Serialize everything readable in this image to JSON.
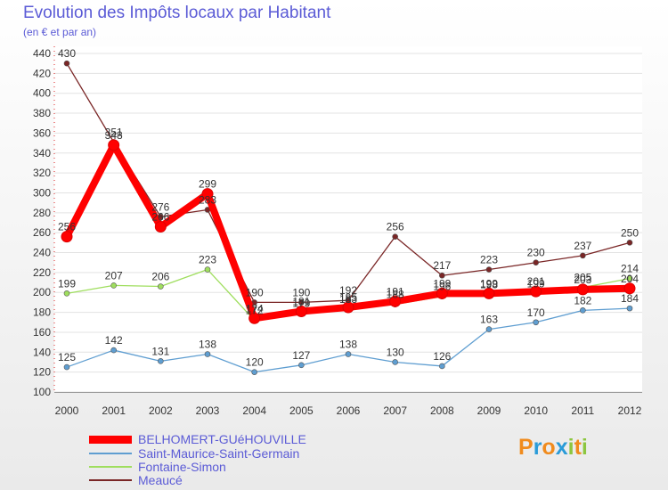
{
  "chart_data": {
    "type": "line",
    "title": "Evolution des Impôts locaux par Habitant",
    "subtitle": "(en € et par an)",
    "xlabel": "",
    "ylabel": "",
    "x": [
      "2000",
      "2001",
      "2002",
      "2003",
      "2004",
      "2005",
      "2006",
      "2007",
      "2008",
      "2009",
      "2010",
      "2011",
      "2012"
    ],
    "ylim": [
      100,
      440
    ],
    "yticks": [
      100,
      120,
      140,
      160,
      180,
      200,
      220,
      240,
      260,
      280,
      300,
      320,
      340,
      360,
      380,
      400,
      420,
      440
    ],
    "series": [
      {
        "name": "BELHOMERT-GUéHOUVILLE",
        "color": "#ff0000",
        "values": [
          256,
          348,
          266,
          299,
          174,
          181,
          185,
          191,
          199,
          199,
          201,
          203,
          204
        ],
        "labels": [
          "256",
          "348",
          "266",
          "299",
          "174",
          "181",
          "185",
          "191",
          "199",
          "199",
          "201",
          "203",
          "204"
        ]
      },
      {
        "name": "Saint-Maurice-Saint-Germain",
        "color": "#5f9ed1",
        "values": [
          125,
          142,
          131,
          138,
          120,
          127,
          138,
          130,
          126,
          163,
          170,
          182,
          184
        ],
        "labels": [
          "125",
          "142",
          "131",
          "138",
          "120",
          "127",
          "138",
          "130",
          "126",
          "163",
          "170",
          "182",
          "184"
        ]
      },
      {
        "name": "Fontaine-Simon",
        "color": "#9fde5e",
        "values": [
          199,
          207,
          206,
          223,
          172,
          179,
          183,
          188,
          196,
          198,
          199,
          205,
          214
        ],
        "labels": [
          "199",
          "207",
          "206",
          "223",
          "172",
          "179",
          "183",
          "188",
          "196",
          "198",
          "199",
          "205",
          "214"
        ]
      },
      {
        "name": "Meaucé",
        "color": "#7a2626",
        "values": [
          430,
          351,
          276,
          283,
          190,
          190,
          192,
          256,
          217,
          223,
          230,
          237,
          250
        ],
        "labels": [
          "430",
          "351",
          "276",
          "283",
          "190",
          "190",
          "192",
          "256",
          "217",
          "223",
          "230",
          "237",
          "250"
        ]
      }
    ]
  },
  "logo": {
    "letters": [
      "P",
      "r",
      "o",
      "x",
      "i",
      "t",
      "i"
    ],
    "colors": [
      "#f08b1d",
      "#2a9bd8",
      "#f08b1d",
      "#2a9bd8",
      "#8cc63f",
      "#f08b1d",
      "#8cc63f"
    ]
  }
}
